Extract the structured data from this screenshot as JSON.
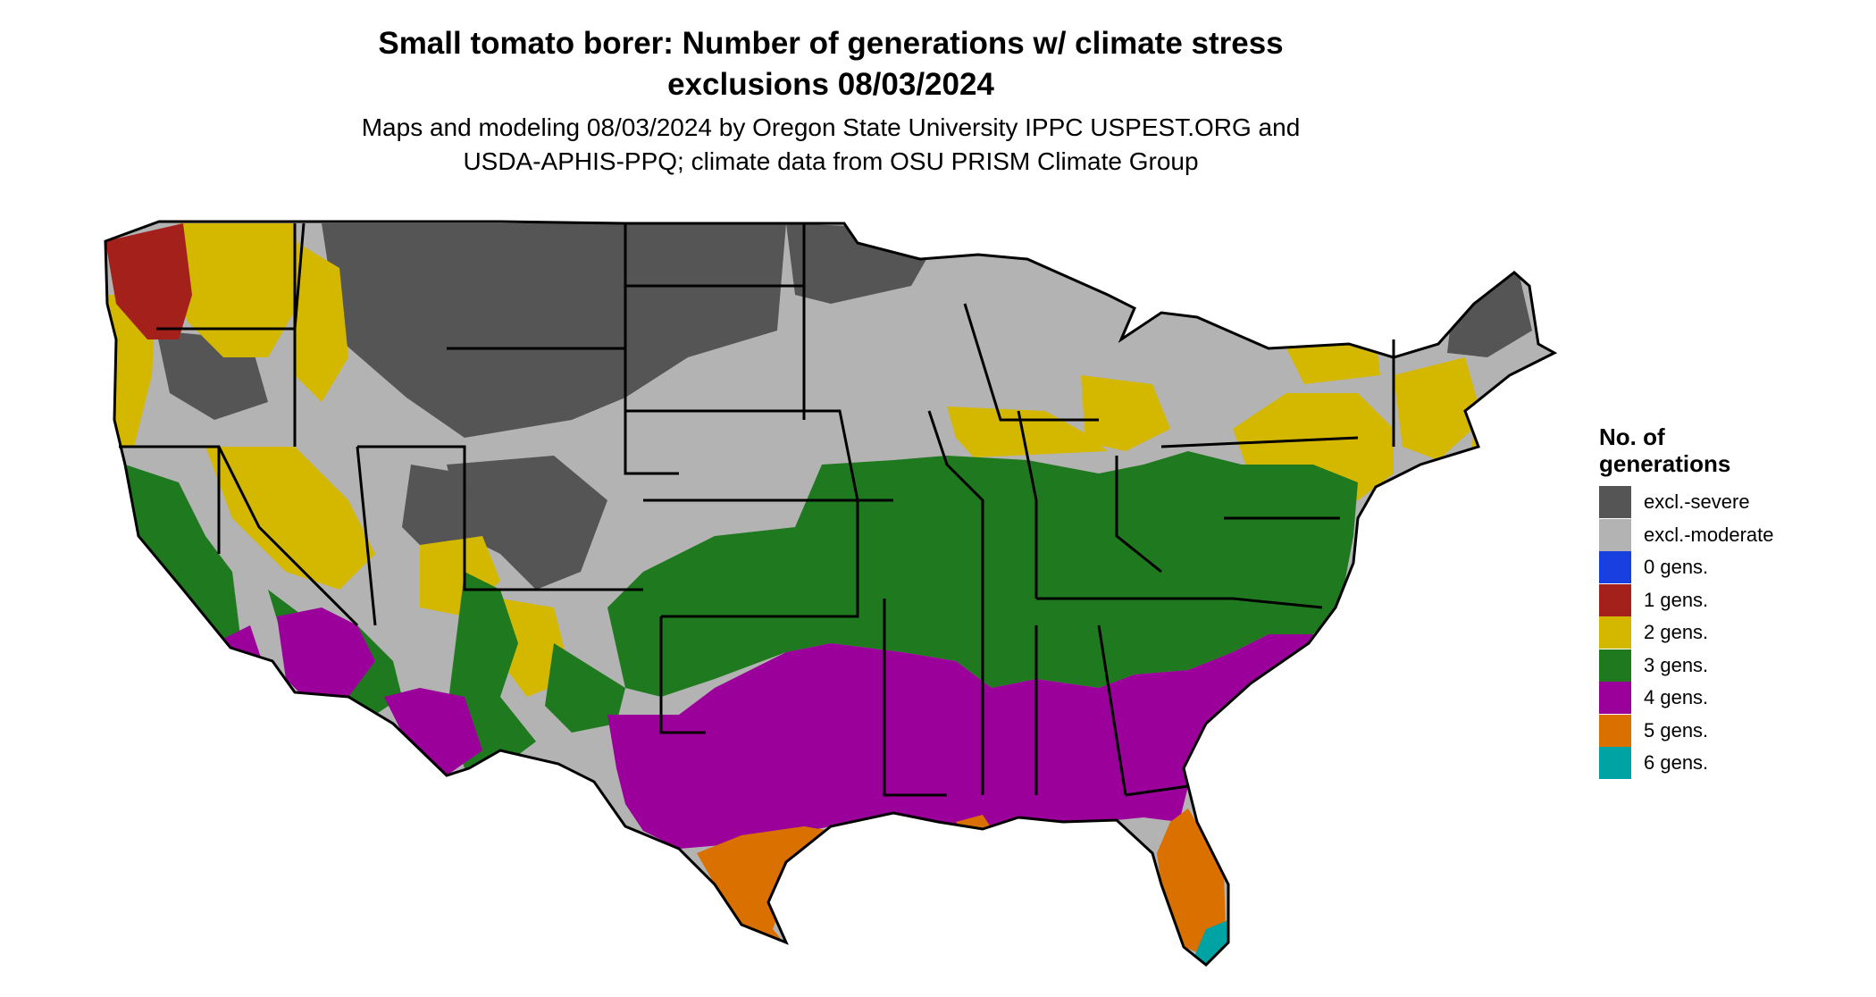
{
  "title": {
    "line1": "Small tomato borer: Number of generations w/ climate stress",
    "line2": "exclusions 08/03/2024"
  },
  "subtitle": {
    "line1": "Maps and modeling 08/03/2024 by Oregon State University IPPC USPEST.ORG and",
    "line2": "USDA-APHIS-PPQ; climate data from OSU PRISM Climate Group"
  },
  "legend": {
    "title_line1": "No. of",
    "title_line2": "generations",
    "items": [
      {
        "label": "excl.-severe",
        "color": "#555555"
      },
      {
        "label": "excl.-moderate",
        "color": "#b3b3b3"
      },
      {
        "label": "0 gens.",
        "color": "#1a3fe0"
      },
      {
        "label": "1 gens.",
        "color": "#a3211a"
      },
      {
        "label": "2 gens.",
        "color": "#d4b800"
      },
      {
        "label": "3 gens.",
        "color": "#1f7a1f"
      },
      {
        "label": "4 gens.",
        "color": "#9b009b"
      },
      {
        "label": "5 gens.",
        "color": "#d97000"
      },
      {
        "label": "6 gens.",
        "color": "#00a3a3"
      }
    ]
  }
}
